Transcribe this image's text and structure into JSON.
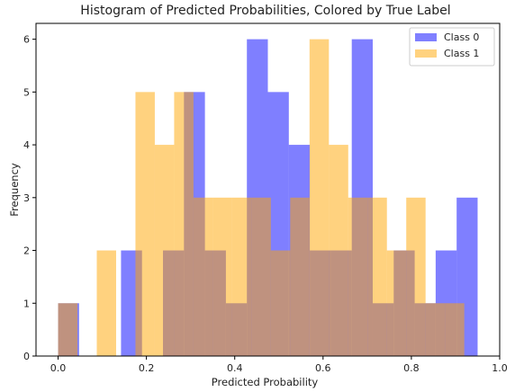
{
  "chart_data": {
    "type": "bar",
    "title": "Histogram of Predicted Probabilities, Colored by True Label",
    "xlabel": "Predicted Probability",
    "ylabel": "Frequency",
    "xlim": [
      -0.05,
      1.0
    ],
    "ylim": [
      0,
      6.3
    ],
    "xticks": [
      0.0,
      0.2,
      0.4,
      0.6,
      0.8,
      1.0
    ],
    "xtick_labels": [
      "0.0",
      "0.2",
      "0.4",
      "0.6",
      "0.8",
      "1.0"
    ],
    "yticks": [
      0,
      1,
      2,
      3,
      4,
      5,
      6
    ],
    "ytick_labels": [
      "0",
      "1",
      "2",
      "3",
      "4",
      "5",
      "6"
    ],
    "grid": false,
    "legend_position": "top-right",
    "series": [
      {
        "name": "Class 0",
        "color": "#0000ff",
        "alpha": 0.5,
        "bin_edges": [
          0.0,
          0.0475,
          0.095,
          0.1425,
          0.19,
          0.2375,
          0.285,
          0.3325,
          0.38,
          0.4275,
          0.475,
          0.5225,
          0.57,
          0.6175,
          0.665,
          0.7125,
          0.76,
          0.8075,
          0.855,
          0.9025,
          0.95
        ],
        "counts": [
          1,
          0,
          0,
          2,
          0,
          2,
          5,
          2,
          1,
          6,
          5,
          4,
          2,
          2,
          6,
          1,
          2,
          1,
          2,
          3
        ]
      },
      {
        "name": "Class 1",
        "color": "#ffa500",
        "alpha": 0.5,
        "bin_edges": [
          0.0,
          0.0438,
          0.0876,
          0.1314,
          0.1752,
          0.219,
          0.2628,
          0.3066,
          0.3504,
          0.3942,
          0.438,
          0.4818,
          0.5256,
          0.5694,
          0.6132,
          0.657,
          0.7008,
          0.7446,
          0.7884,
          0.8322,
          0.876,
          0.9198,
          0.9636
        ],
        "counts": [
          1,
          0,
          2,
          0,
          5,
          4,
          5,
          3,
          3,
          3,
          3,
          2,
          3,
          6,
          4,
          3,
          3,
          2,
          3,
          1,
          1,
          0
        ]
      }
    ]
  }
}
